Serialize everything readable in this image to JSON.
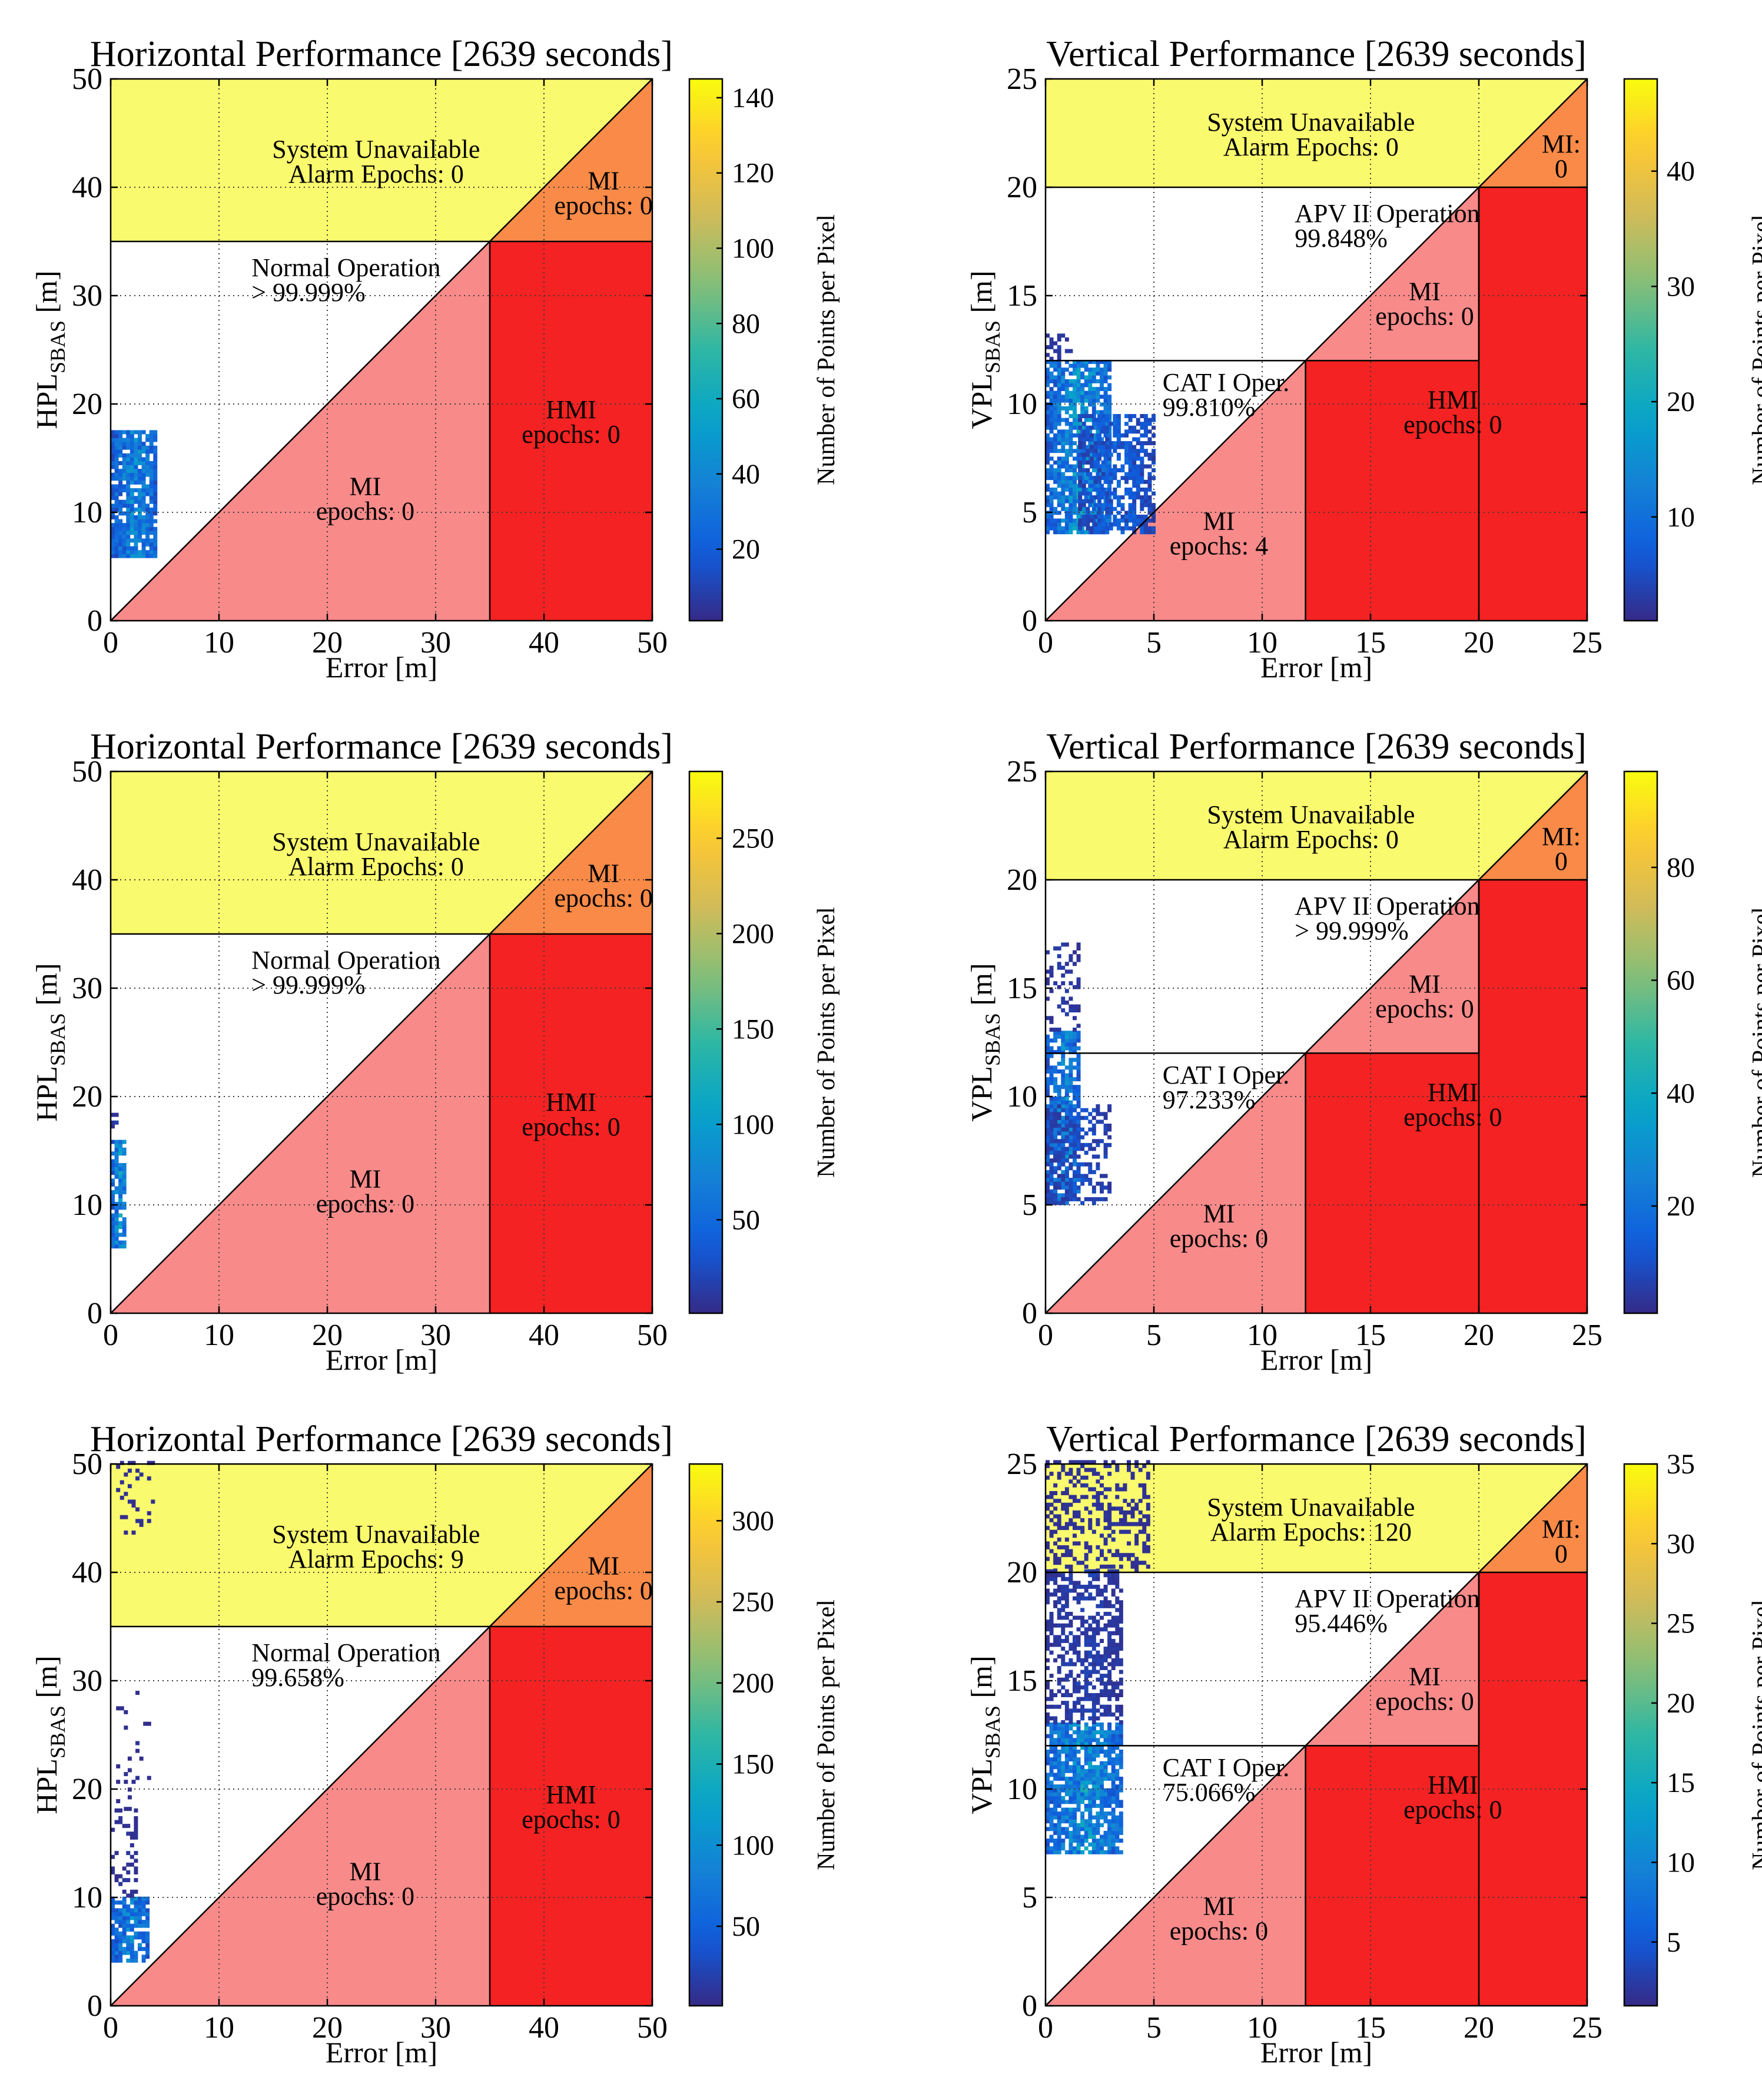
{
  "figure": {
    "colors": {
      "unavailable": "#fafa6e",
      "mi_corner": "#f98a47",
      "hmi": "#f42222",
      "mi": "#f98a8a",
      "normal": "#ffffff",
      "parula": [
        "#352a87",
        "#0f5cdd",
        "#1481d6",
        "#06a4ca",
        "#2eb7a4",
        "#87bf77",
        "#d1bb59",
        "#fec832",
        "#f9fb0e"
      ]
    }
  },
  "chart_data": [
    {
      "type": "heatmap",
      "title": "Horizontal Performance [2639 seconds]",
      "xlabel": "Error [m]",
      "ylabel_main": "HPL",
      "ylabel_sub": "SBAS",
      "ylabel_unit": " [m]",
      "colorbar_label": "Number of Points per Pixel",
      "xlim": [
        0,
        50
      ],
      "ylim": [
        0,
        50
      ],
      "xticks": [
        0,
        10,
        20,
        30,
        40,
        50
      ],
      "yticks": [
        0,
        10,
        20,
        30,
        40,
        50
      ],
      "alert_limits": [
        35
      ],
      "clim": [
        1,
        145
      ],
      "cticks": [
        20,
        40,
        60,
        80,
        100,
        120,
        140
      ],
      "grid": true,
      "regions": {
        "unavailable": [
          "System Unavailable",
          "Alarm Epochs: 0"
        ],
        "mi_upper": [
          "MI",
          "epochs: 0"
        ],
        "operations": [
          [
            "Normal Operation",
            "> 99.999%"
          ]
        ],
        "mi_lower": [
          "MI",
          "epochs: 0"
        ],
        "hmi": [
          "HMI",
          "epochs: 0"
        ]
      },
      "density": [
        {
          "x": [
            0,
            4.2
          ],
          "y": [
            5.8,
            17.5
          ],
          "density": 0.85,
          "peak": 0.3
        }
      ]
    },
    {
      "type": "heatmap",
      "title": "Vertical Performance [2639 seconds]",
      "xlabel": "Error [m]",
      "ylabel_main": "VPL",
      "ylabel_sub": "SBAS",
      "ylabel_unit": " [m]",
      "colorbar_label": "Number of Points per Pixel",
      "xlim": [
        0,
        25
      ],
      "ylim": [
        0,
        25
      ],
      "xticks": [
        0,
        5,
        10,
        15,
        20,
        25
      ],
      "yticks": [
        0,
        5,
        10,
        15,
        20,
        25
      ],
      "alert_limits": [
        12,
        20
      ],
      "clim": [
        1,
        48
      ],
      "cticks": [
        10,
        20,
        30,
        40
      ],
      "grid": true,
      "regions": {
        "unavailable": [
          "System Unavailable",
          "Alarm Epochs: 0"
        ],
        "mi_upper": [
          "MI:",
          "0"
        ],
        "operations": [
          [
            "APV II Operation",
            "99.848%"
          ],
          [
            "CAT I Oper.",
            "99.810%"
          ]
        ],
        "mi_mid": [
          "MI",
          "epochs: 0"
        ],
        "mi_lower": [
          "MI",
          "epochs: 4"
        ],
        "hmi": [
          "HMI",
          "epochs: 0"
        ]
      },
      "density": [
        {
          "x": [
            0,
            3.0
          ],
          "y": [
            4.0,
            12.0
          ],
          "density": 0.8,
          "peak": 0.35
        },
        {
          "x": [
            1.5,
            5.0
          ],
          "y": [
            4.0,
            9.5
          ],
          "density": 0.65,
          "peak": 0.15
        },
        {
          "x": [
            0,
            1.2
          ],
          "y": [
            12.0,
            13.2
          ],
          "density": 0.3,
          "peak": 0.05
        }
      ]
    },
    {
      "type": "heatmap",
      "title": "Horizontal Performance [2639 seconds]",
      "xlabel": "Error [m]",
      "ylabel_main": "HPL",
      "ylabel_sub": "SBAS",
      "ylabel_unit": " [m]",
      "colorbar_label": "Number of Points per Pixel",
      "xlim": [
        0,
        50
      ],
      "ylim": [
        0,
        50
      ],
      "xticks": [
        0,
        10,
        20,
        30,
        40,
        50
      ],
      "yticks": [
        0,
        10,
        20,
        30,
        40,
        50
      ],
      "alert_limits": [
        35
      ],
      "clim": [
        1,
        285
      ],
      "cticks": [
        50,
        100,
        150,
        200,
        250
      ],
      "grid": true,
      "regions": {
        "unavailable": [
          "System Unavailable",
          "Alarm Epochs: 0"
        ],
        "mi_upper": [
          "MI",
          "epochs: 0"
        ],
        "operations": [
          [
            "Normal Operation",
            "> 99.999%"
          ]
        ],
        "mi_lower": [
          "MI",
          "epochs: 0"
        ],
        "hmi": [
          "HMI",
          "epochs: 0"
        ]
      },
      "density": [
        {
          "x": [
            0,
            1.4
          ],
          "y": [
            6.0,
            16.0
          ],
          "density": 0.8,
          "peak": 0.35
        },
        {
          "x": [
            0,
            0.6
          ],
          "y": [
            16.0,
            18.5
          ],
          "density": 0.4,
          "peak": 0.05
        }
      ]
    },
    {
      "type": "heatmap",
      "title": "Vertical Performance [2639 seconds]",
      "xlabel": "Error [m]",
      "ylabel_main": "VPL",
      "ylabel_sub": "SBAS",
      "ylabel_unit": " [m]",
      "colorbar_label": "Number of Points per Pixel",
      "xlim": [
        0,
        25
      ],
      "ylim": [
        0,
        25
      ],
      "xticks": [
        0,
        5,
        10,
        15,
        20,
        25
      ],
      "yticks": [
        0,
        5,
        10,
        15,
        20,
        25
      ],
      "alert_limits": [
        12,
        20
      ],
      "clim": [
        1,
        97
      ],
      "cticks": [
        20,
        40,
        60,
        80
      ],
      "grid": true,
      "regions": {
        "unavailable": [
          "System Unavailable",
          "Alarm Epochs: 0"
        ],
        "mi_upper": [
          "MI:",
          "0"
        ],
        "operations": [
          [
            "APV II Operation",
            "> 99.999%"
          ],
          [
            "CAT I Oper.",
            "97.233%"
          ]
        ],
        "mi_mid": [
          "MI",
          "epochs: 0"
        ],
        "mi_lower": [
          "MI",
          "epochs: 0"
        ],
        "hmi": [
          "HMI",
          "epochs: 0"
        ]
      },
      "density": [
        {
          "x": [
            0,
            1.6
          ],
          "y": [
            5.0,
            13.0
          ],
          "density": 0.75,
          "peak": 0.3
        },
        {
          "x": [
            0,
            3.0
          ],
          "y": [
            5.0,
            9.5
          ],
          "density": 0.45,
          "peak": 0.1
        },
        {
          "x": [
            0,
            1.5
          ],
          "y": [
            13.0,
            17.0
          ],
          "density": 0.3,
          "peak": 0.05
        }
      ]
    },
    {
      "type": "heatmap",
      "title": "Horizontal Performance [2639 seconds]",
      "xlabel": "Error [m]",
      "ylabel_main": "HPL",
      "ylabel_sub": "SBAS",
      "ylabel_unit": " [m]",
      "colorbar_label": "Number of Points per Pixel",
      "xlim": [
        0,
        50
      ],
      "ylim": [
        0,
        50
      ],
      "xticks": [
        0,
        10,
        20,
        30,
        40,
        50
      ],
      "yticks": [
        0,
        10,
        20,
        30,
        40,
        50
      ],
      "alert_limits": [
        35
      ],
      "clim": [
        1,
        335
      ],
      "cticks": [
        50,
        100,
        150,
        200,
        250,
        300
      ],
      "grid": true,
      "regions": {
        "unavailable": [
          "System Unavailable",
          "Alarm Epochs: 9"
        ],
        "mi_upper": [
          "MI",
          "epochs: 0"
        ],
        "operations": [
          [
            "Normal Operation",
            "99.658%"
          ]
        ],
        "mi_lower": [
          "MI",
          "epochs: 0"
        ],
        "hmi": [
          "HMI",
          "epochs: 0"
        ]
      },
      "density": [
        {
          "x": [
            0,
            3.5
          ],
          "y": [
            4.0,
            10.0
          ],
          "density": 0.8,
          "peak": 0.3
        },
        {
          "x": [
            0,
            2.5
          ],
          "y": [
            10.0,
            18.0
          ],
          "density": 0.25,
          "peak": 0.03
        },
        {
          "x": [
            0.5,
            3.5
          ],
          "y": [
            18.0,
            29.0
          ],
          "density": 0.12,
          "peak": 0.02
        },
        {
          "x": [
            0.5,
            4.0
          ],
          "y": [
            43.5,
            50.0
          ],
          "density": 0.12,
          "peak": 0.02
        }
      ]
    },
    {
      "type": "heatmap",
      "title": "Vertical Performance [2639 seconds]",
      "xlabel": "Error [m]",
      "ylabel_main": "VPL",
      "ylabel_sub": "SBAS",
      "ylabel_unit": " [m]",
      "colorbar_label": "Number of Points per Pixel",
      "xlim": [
        0,
        25
      ],
      "ylim": [
        0,
        25
      ],
      "xticks": [
        0,
        5,
        10,
        15,
        20,
        25
      ],
      "yticks": [
        0,
        5,
        10,
        15,
        20,
        25
      ],
      "alert_limits": [
        12,
        20
      ],
      "clim": [
        1,
        35
      ],
      "cticks": [
        5,
        10,
        15,
        20,
        25,
        30,
        35
      ],
      "grid": true,
      "regions": {
        "unavailable": [
          "System Unavailable",
          "Alarm Epochs: 120"
        ],
        "mi_upper": [
          "MI:",
          "0"
        ],
        "operations": [
          [
            "APV II Operation",
            "95.446%"
          ],
          [
            "CAT I Oper.",
            "75.066%"
          ]
        ],
        "mi_mid": [
          "MI",
          "epochs: 0"
        ],
        "mi_lower": [
          "MI",
          "epochs: 0"
        ],
        "hmi": [
          "HMI",
          "epochs: 0"
        ]
      },
      "density": [
        {
          "x": [
            0,
            3.5
          ],
          "y": [
            7.0,
            13.0
          ],
          "density": 0.8,
          "peak": 0.35
        },
        {
          "x": [
            0,
            3.5
          ],
          "y": [
            13.0,
            20.0
          ],
          "density": 0.55,
          "peak": 0.06
        },
        {
          "x": [
            0,
            4.8
          ],
          "y": [
            20.0,
            25.0
          ],
          "density": 0.35,
          "peak": 0.03
        }
      ]
    }
  ]
}
